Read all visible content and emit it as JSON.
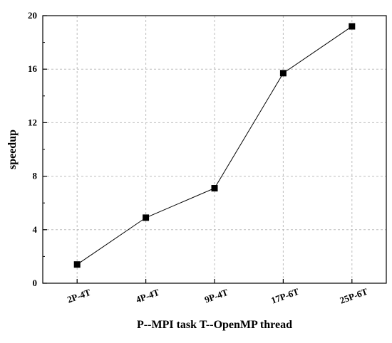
{
  "chart_data": {
    "type": "line",
    "title": "",
    "xlabel": "P--MPI task T--OpenMP thread",
    "ylabel": "speedup",
    "categories": [
      "2P-4T",
      "4P-4T",
      "9P-4T",
      "17P-6T",
      "25P-6T"
    ],
    "series": [
      {
        "values": [
          1.4,
          4.9,
          7.1,
          15.7,
          19.2
        ],
        "marker": "square",
        "color": "#000000"
      }
    ],
    "ylim": [
      0,
      20
    ],
    "yticks": [
      0,
      4,
      8,
      12,
      16,
      20
    ],
    "grid": true,
    "grid_style": "dashed",
    "legend": "none"
  }
}
